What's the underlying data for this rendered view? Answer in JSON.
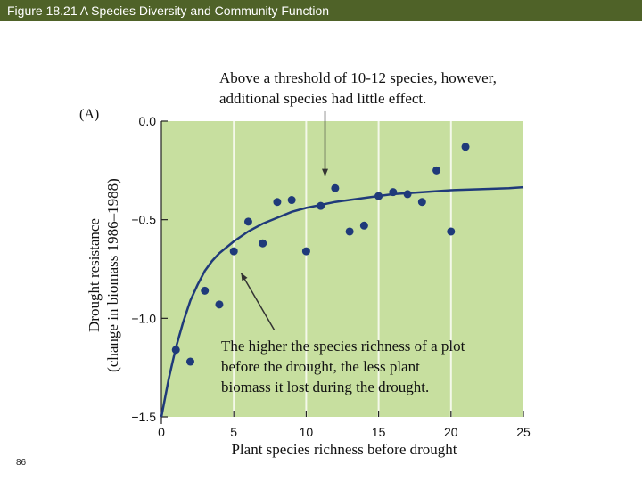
{
  "header": {
    "title": "Figure 18.21 A  Species Diversity and Community Function"
  },
  "annotations": {
    "top": [
      "Above a threshold of 10-12 species, however,",
      "additional species had little effect."
    ],
    "bottom": [
      "The higher the species richness of a plot",
      "before the drought, the less plant",
      "biomass it lost during the drought."
    ]
  },
  "footer": {
    "page_number": "86"
  },
  "colors": {
    "plot_bg": "#c7df9f",
    "grid": "#f4f8ea",
    "points": "#1f3a7a",
    "curve": "#1f3a7a"
  },
  "chart_data": {
    "type": "scatter",
    "panel_label": "(A)",
    "title": "",
    "xlabel": "Plant species richness before drought",
    "ylabel_line1": "Drought resistance",
    "ylabel_line2": "(change in biomass 1986–1988)",
    "xlim": [
      0,
      25
    ],
    "ylim": [
      -1.5,
      0.0
    ],
    "xticks": [
      0,
      5,
      10,
      15,
      20,
      25
    ],
    "yticks": [
      0.0,
      -0.5,
      -1.0,
      -1.5
    ],
    "xtick_labels": [
      "0",
      "5",
      "10",
      "15",
      "20",
      "25"
    ],
    "ytick_labels": [
      "0.0",
      "−0.5",
      "−1.0",
      "−1.5"
    ],
    "grid_x": [
      5,
      10,
      15,
      20
    ],
    "points": [
      {
        "x": 1,
        "y": -1.16
      },
      {
        "x": 2,
        "y": -1.22
      },
      {
        "x": 3,
        "y": -0.86
      },
      {
        "x": 4,
        "y": -0.93
      },
      {
        "x": 5,
        "y": -0.66
      },
      {
        "x": 6,
        "y": -0.51
      },
      {
        "x": 7,
        "y": -0.62
      },
      {
        "x": 8,
        "y": -0.41
      },
      {
        "x": 9,
        "y": -0.4
      },
      {
        "x": 10,
        "y": -0.66
      },
      {
        "x": 11,
        "y": -0.43
      },
      {
        "x": 12,
        "y": -0.34
      },
      {
        "x": 13,
        "y": -0.56
      },
      {
        "x": 14,
        "y": -0.53
      },
      {
        "x": 15,
        "y": -0.38
      },
      {
        "x": 16,
        "y": -0.36
      },
      {
        "x": 17,
        "y": -0.37
      },
      {
        "x": 18,
        "y": -0.41
      },
      {
        "x": 19,
        "y": -0.25
      },
      {
        "x": 20,
        "y": -0.56
      },
      {
        "x": 21,
        "y": -0.13
      }
    ],
    "fit_curve": {
      "x": [
        0,
        0.5,
        1,
        1.5,
        2,
        2.5,
        3,
        3.5,
        4,
        5,
        6,
        7,
        8,
        9,
        10,
        12,
        14,
        16,
        18,
        20,
        22,
        24,
        25
      ],
      "y": [
        -1.5,
        -1.31,
        -1.15,
        -1.02,
        -0.91,
        -0.83,
        -0.76,
        -0.71,
        -0.67,
        -0.61,
        -0.56,
        -0.52,
        -0.49,
        -0.46,
        -0.44,
        -0.41,
        -0.39,
        -0.37,
        -0.36,
        -0.35,
        -0.345,
        -0.34,
        -0.335
      ]
    },
    "arrows": [
      {
        "from": [
          11.3,
          0.05
        ],
        "to": [
          11.3,
          -0.28
        ]
      },
      {
        "from": [
          7.8,
          -1.06
        ],
        "to": [
          5.5,
          -0.77
        ]
      }
    ]
  }
}
